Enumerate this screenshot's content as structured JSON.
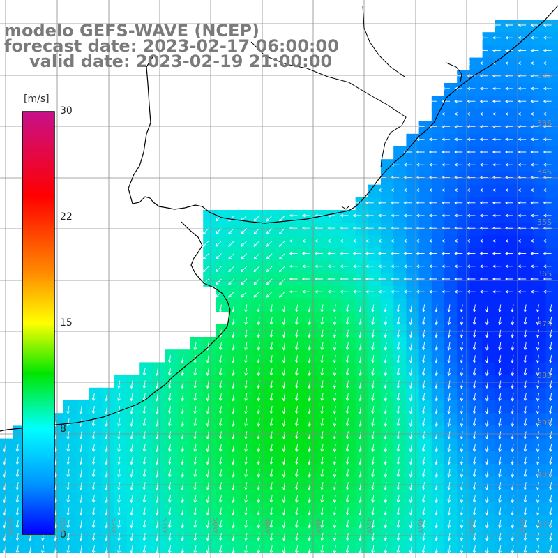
{
  "title": {
    "line1": "modelo GEFS-WAVE (NCEP)",
    "line2": "forecast date: 2023-02-17 06:00:00",
    "line3": "valid date: 2023-02-19 21:00:00"
  },
  "colorbar": {
    "unit": "[m/s]",
    "ticks": [
      "30",
      "22",
      "15",
      "8",
      "0"
    ],
    "colors": [
      "#c8108a",
      "#ff0000",
      "#ff8a00",
      "#ffff00",
      "#00e600",
      "#00ffff",
      "#0096ff",
      "#0000ff"
    ]
  },
  "lat_labels": [
    "32S",
    "33S",
    "34S",
    "35S",
    "36S",
    "37S",
    "38S",
    "39S",
    "40S",
    "41S"
  ],
  "lon_labels": [
    "54W",
    "53W",
    "52W",
    "51W",
    "50W",
    "49W",
    "48W",
    "47W",
    "46W",
    "45W",
    "44W"
  ],
  "colors": {
    "land": "#ffffff",
    "grid": "#8a8a8a",
    "coast": "#000000",
    "arrow": "#ffffff",
    "title": "#7a7a7a"
  }
}
